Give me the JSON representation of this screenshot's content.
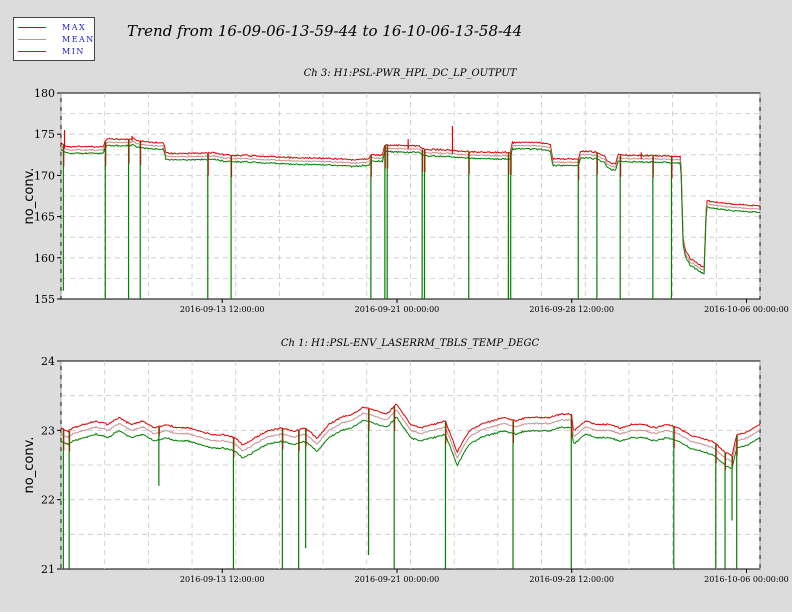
{
  "legend": {
    "items": [
      {
        "label": "MAX",
        "color": "#e00000"
      },
      {
        "label": "MEAN",
        "color": "#c89090"
      },
      {
        "label": "MIN",
        "color": "#008000"
      }
    ]
  },
  "title": "Trend from 16-09-06-13-59-44 to 16-10-06-13-58-44",
  "chart_data": [
    {
      "type": "line",
      "title": "Ch 3: H1:PSL-PWR_HPL_DC_LP_OUTPUT",
      "ylabel": "no_conv.",
      "xlim_days": [
        0,
        30
      ],
      "ylim": [
        155,
        180
      ],
      "yticks": [
        155,
        160,
        165,
        170,
        175,
        180
      ],
      "xticks": [
        {
          "day": 6.92,
          "label": "2016-09-13 12:00:00"
        },
        {
          "day": 14.42,
          "label": "2016-09-21 00:00:00"
        },
        {
          "day": 21.92,
          "label": "2016-09-28 12:00:00"
        },
        {
          "day": 29.42,
          "label": "2016-10-06 00:00:00"
        }
      ],
      "series_mean": [
        [
          0,
          173.5
        ],
        [
          0.3,
          173.1
        ],
        [
          1.8,
          173.1
        ],
        [
          1.95,
          174.0
        ],
        [
          3.0,
          174.0
        ],
        [
          3.05,
          174.2
        ],
        [
          3.3,
          173.8
        ],
        [
          4.0,
          173.6
        ],
        [
          4.4,
          173.6
        ],
        [
          4.5,
          172.3
        ],
        [
          6.0,
          172.3
        ],
        [
          6.4,
          172.3
        ],
        [
          6.5,
          172.4
        ],
        [
          7.0,
          172.1
        ],
        [
          8.3,
          172.0
        ],
        [
          9.0,
          171.9
        ],
        [
          9.5,
          171.8
        ],
        [
          11.0,
          171.7
        ],
        [
          12.5,
          171.5
        ],
        [
          13.2,
          171.6
        ],
        [
          13.3,
          172.1
        ],
        [
          13.8,
          172.1
        ],
        [
          13.9,
          173.3
        ],
        [
          15.0,
          173.2
        ],
        [
          15.4,
          173.2
        ],
        [
          15.5,
          172.8
        ],
        [
          16.5,
          172.7
        ],
        [
          17.5,
          172.5
        ],
        [
          18.5,
          172.4
        ],
        [
          19.3,
          172.4
        ],
        [
          19.35,
          173.6
        ],
        [
          20.5,
          173.6
        ],
        [
          21.0,
          173.4
        ],
        [
          21.1,
          171.6
        ],
        [
          22.2,
          171.6
        ],
        [
          22.3,
          172.6
        ],
        [
          23.0,
          172.4
        ],
        [
          23.3,
          172.0
        ],
        [
          23.5,
          171.2
        ],
        [
          23.8,
          171.0
        ],
        [
          23.9,
          172.1
        ],
        [
          25.0,
          172.0
        ],
        [
          25.5,
          172.0
        ],
        [
          26.6,
          171.9
        ],
        [
          26.7,
          162.0
        ],
        [
          26.8,
          160.5
        ],
        [
          27.0,
          159.5
        ],
        [
          27.5,
          158.6
        ],
        [
          27.6,
          158.5
        ],
        [
          27.7,
          166.5
        ],
        [
          28.5,
          166.2
        ],
        [
          29.5,
          166.0
        ],
        [
          30,
          165.9
        ]
      ],
      "spread": [
        0.35,
        0.35
      ],
      "dips": [
        [
          0.1,
          156.0
        ],
        [
          1.9,
          155.0
        ],
        [
          2.9,
          155.0
        ],
        [
          3.4,
          155.0
        ],
        [
          6.3,
          155.0
        ],
        [
          7.3,
          155.0
        ],
        [
          13.3,
          155.0
        ],
        [
          13.9,
          155.0
        ],
        [
          14.0,
          155.0
        ],
        [
          15.5,
          155.0
        ],
        [
          15.6,
          155.0
        ],
        [
          17.5,
          155.0
        ],
        [
          19.2,
          155.0
        ],
        [
          19.3,
          155.0
        ],
        [
          22.2,
          155.0
        ],
        [
          23.0,
          155.0
        ],
        [
          24.0,
          155.0
        ],
        [
          25.4,
          155.0
        ],
        [
          26.2,
          155.0
        ]
      ],
      "spikes": [
        [
          0.15,
          175.5
        ],
        [
          3.05,
          174.8
        ],
        [
          14.9,
          174.4
        ],
        [
          16.8,
          176.0
        ],
        [
          24.9,
          172.8
        ]
      ]
    },
    {
      "type": "line",
      "title": "Ch 1: H1:PSL-ENV_LASERRM_TBLS_TEMP_DEGC",
      "ylabel": "no_conv.",
      "xlim_days": [
        0,
        30
      ],
      "ylim": [
        21,
        24
      ],
      "yticks": [
        21,
        22,
        23,
        24
      ],
      "xticks": [
        {
          "day": 6.92,
          "label": "2016-09-13 12:00:00"
        },
        {
          "day": 14.42,
          "label": "2016-09-21 00:00:00"
        },
        {
          "day": 21.92,
          "label": "2016-09-28 12:00:00"
        },
        {
          "day": 29.42,
          "label": "2016-10-06 00:00:00"
        }
      ],
      "series_mean": [
        [
          0,
          22.95
        ],
        [
          0.3,
          22.9
        ],
        [
          0.5,
          22.95
        ],
        [
          1.0,
          23.0
        ],
        [
          1.5,
          23.05
        ],
        [
          2.0,
          23.0
        ],
        [
          2.5,
          23.1
        ],
        [
          3.0,
          23.0
        ],
        [
          3.5,
          23.05
        ],
        [
          4.0,
          22.95
        ],
        [
          4.5,
          23.0
        ],
        [
          5.0,
          22.95
        ],
        [
          5.5,
          22.95
        ],
        [
          6.0,
          22.9
        ],
        [
          6.5,
          22.85
        ],
        [
          7.0,
          22.85
        ],
        [
          7.5,
          22.8
        ],
        [
          7.8,
          22.7
        ],
        [
          8.3,
          22.8
        ],
        [
          8.8,
          22.9
        ],
        [
          9.5,
          22.95
        ],
        [
          10.0,
          22.9
        ],
        [
          10.5,
          22.95
        ],
        [
          11.0,
          22.8
        ],
        [
          11.5,
          23.0
        ],
        [
          12.0,
          23.1
        ],
        [
          12.5,
          23.15
        ],
        [
          13.0,
          23.25
        ],
        [
          13.5,
          23.2
        ],
        [
          14.0,
          23.15
        ],
        [
          14.4,
          23.3
        ],
        [
          14.6,
          23.2
        ],
        [
          15.0,
          23.0
        ],
        [
          15.4,
          22.95
        ],
        [
          16.0,
          23.0
        ],
        [
          16.5,
          23.05
        ],
        [
          17.0,
          22.6
        ],
        [
          17.5,
          22.9
        ],
        [
          18.0,
          23.0
        ],
        [
          18.5,
          23.05
        ],
        [
          19.0,
          23.1
        ],
        [
          19.5,
          23.05
        ],
        [
          20.0,
          23.1
        ],
        [
          20.5,
          23.1
        ],
        [
          21.0,
          23.1
        ],
        [
          21.5,
          23.15
        ],
        [
          21.9,
          23.15
        ],
        [
          22.0,
          22.9
        ],
        [
          22.5,
          23.05
        ],
        [
          23.0,
          23.0
        ],
        [
          23.5,
          23.0
        ],
        [
          24.0,
          22.95
        ],
        [
          24.5,
          23.0
        ],
        [
          25.0,
          23.0
        ],
        [
          25.5,
          22.95
        ],
        [
          26.0,
          23.0
        ],
        [
          26.5,
          22.95
        ],
        [
          27.0,
          22.85
        ],
        [
          27.5,
          22.8
        ],
        [
          28.0,
          22.75
        ],
        [
          28.5,
          22.6
        ],
        [
          28.8,
          22.55
        ],
        [
          29.0,
          22.85
        ],
        [
          29.5,
          22.9
        ],
        [
          30,
          23.0
        ]
      ],
      "spread": [
        0.08,
        0.1
      ],
      "dips": [
        [
          0.1,
          21.0
        ],
        [
          0.35,
          21.0
        ],
        [
          4.2,
          22.2
        ],
        [
          7.4,
          21.0
        ],
        [
          9.5,
          21.0
        ],
        [
          10.2,
          21.0
        ],
        [
          10.5,
          21.3
        ],
        [
          13.2,
          21.2
        ],
        [
          14.3,
          21.0
        ],
        [
          16.5,
          21.0
        ],
        [
          19.4,
          21.0
        ],
        [
          21.9,
          21.0
        ],
        [
          26.3,
          21.0
        ],
        [
          28.1,
          21.0
        ],
        [
          28.5,
          21.0
        ],
        [
          28.8,
          21.7
        ],
        [
          29.0,
          21.0
        ]
      ],
      "spikes": []
    }
  ]
}
